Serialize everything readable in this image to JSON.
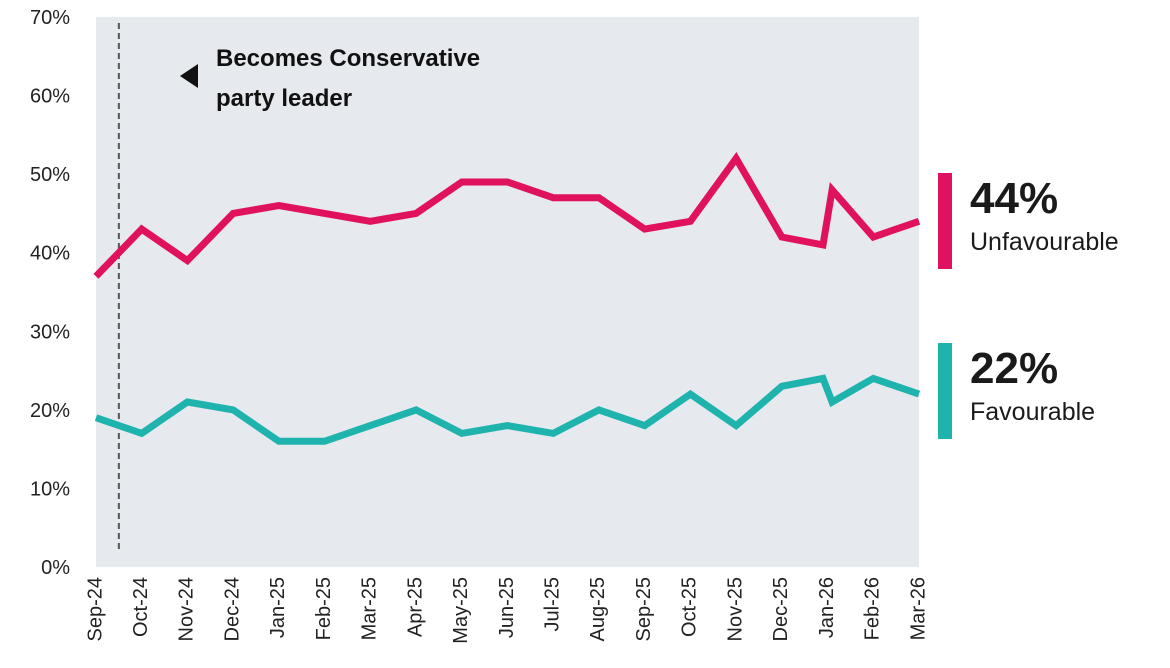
{
  "chart_data": {
    "type": "line",
    "title": "",
    "xlabel": "",
    "ylabel": "",
    "ylim": [
      0,
      70
    ],
    "yticks": [
      0,
      10,
      20,
      30,
      40,
      50,
      60,
      70
    ],
    "ytick_labels": [
      "0%",
      "10%",
      "20%",
      "30%",
      "40%",
      "50%",
      "60%",
      "70%"
    ],
    "x_labels": [
      "Sep-24",
      "Oct-24",
      "Nov-24",
      "Dec-24",
      "Jan-25",
      "Feb-25",
      "Mar-25",
      "Apr-25",
      "May-25",
      "Jun-25",
      "Jul-25",
      "Aug-25",
      "Sep-25",
      "Oct-25",
      "Nov-25",
      "Dec-25",
      "Jan-26",
      "Feb-26",
      "Mar-26"
    ],
    "grid": false,
    "background": "#e6e9ee",
    "annotation": {
      "text_line1": "Becomes Conservative",
      "text_line2": "party leader",
      "x": 0.5
    },
    "series": [
      {
        "name": "Unfavourable",
        "color": "#e0115f",
        "x": [
          0,
          1,
          2,
          3,
          4,
          5,
          6,
          7,
          8,
          9,
          10,
          11,
          12,
          13,
          14,
          15,
          15.9,
          16.1,
          17,
          18
        ],
        "values": [
          37,
          43,
          39,
          45,
          46,
          45,
          44,
          45,
          49,
          49,
          47,
          47,
          43,
          44,
          52,
          42,
          41,
          48,
          42,
          44
        ]
      },
      {
        "name": "Favourable",
        "color": "#1fb3ae",
        "x": [
          0,
          1,
          2,
          3,
          4,
          5,
          6,
          7,
          8,
          9,
          10,
          11,
          12,
          13,
          14,
          15,
          15.9,
          16.1,
          17,
          18
        ],
        "values": [
          19,
          17,
          21,
          20,
          16,
          16,
          18,
          20,
          17,
          18,
          17,
          20,
          18,
          22,
          18,
          23,
          24,
          21,
          24,
          22
        ]
      }
    ],
    "legend": [
      {
        "value": "44%",
        "label": "Unfavourable",
        "color": "#e0115f"
      },
      {
        "value": "22%",
        "label": "Favourable",
        "color": "#1fb3ae"
      }
    ]
  }
}
